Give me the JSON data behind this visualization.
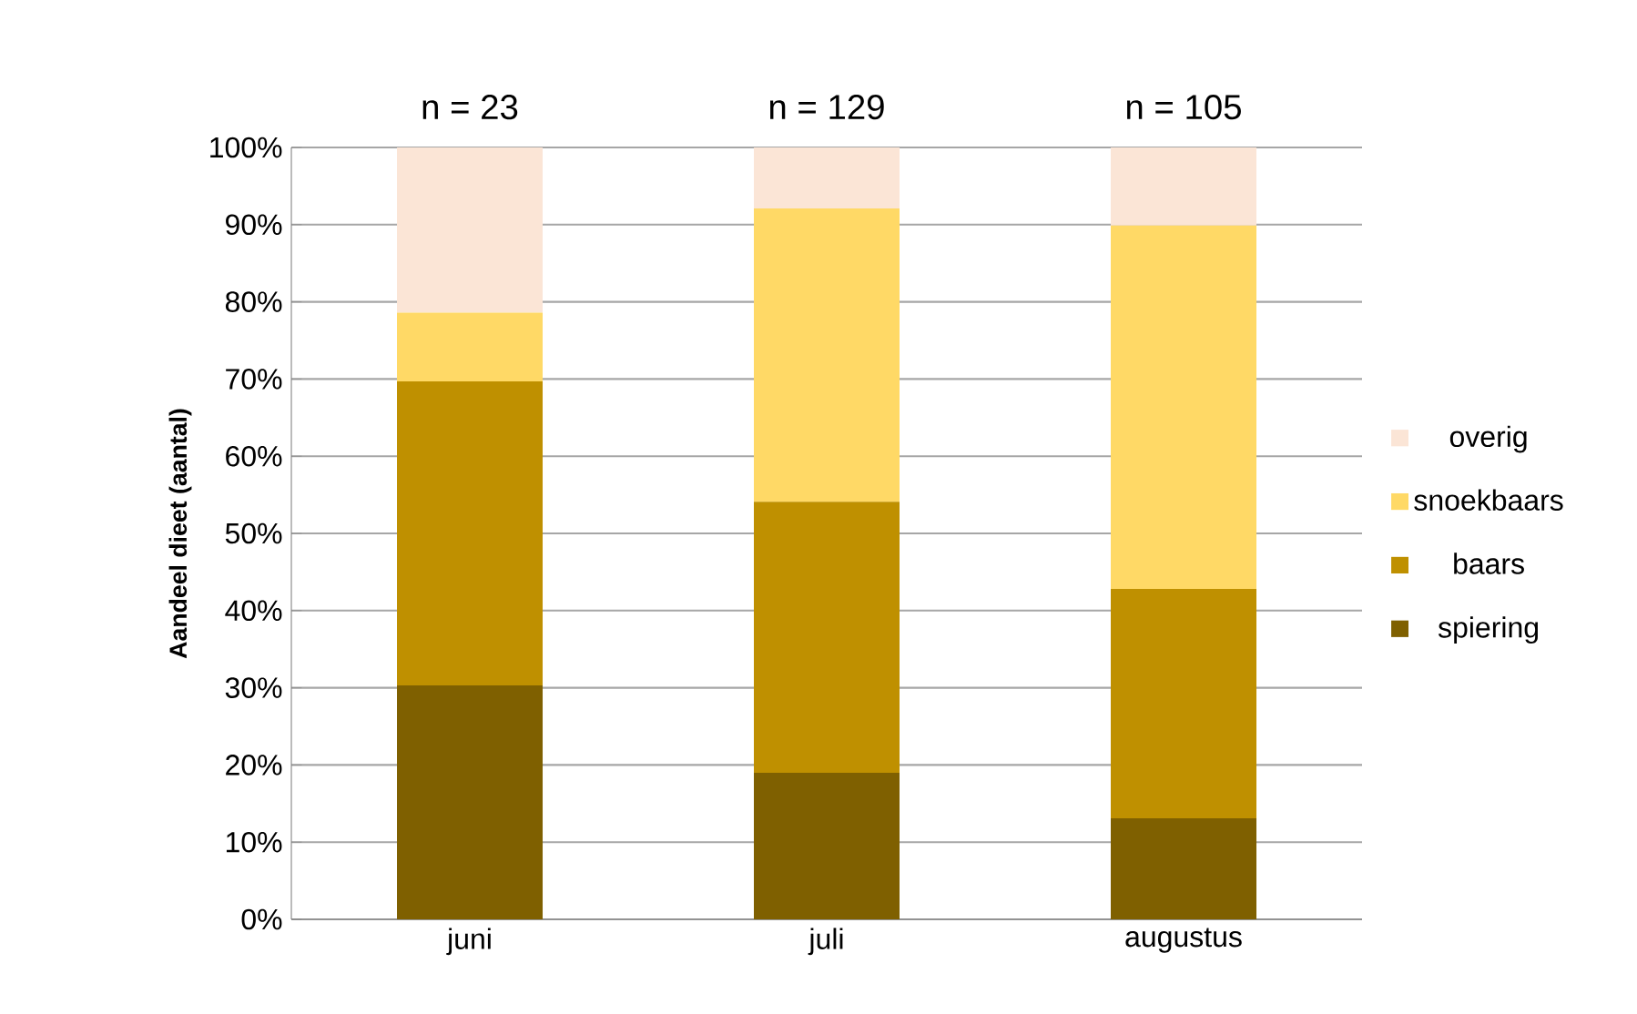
{
  "chart_data": {
    "type": "bar",
    "stacked": true,
    "ylabel": "Aandeel dieet (aantal)",
    "categories": [
      "juni",
      "juli",
      "augustus"
    ],
    "series": [
      {
        "name": "spiering",
        "color": "#7f6000",
        "values": [
          30.3,
          19.0,
          13.1
        ]
      },
      {
        "name": "baars",
        "color": "#bf9000",
        "values": [
          39.4,
          35.1,
          29.7
        ]
      },
      {
        "name": "snoekbaars",
        "color": "#ffd966",
        "values": [
          8.9,
          38.0,
          47.1
        ]
      },
      {
        "name": "overig",
        "color": "#fbe5d6",
        "values": [
          21.4,
          7.9,
          10.1
        ]
      }
    ],
    "ylim": [
      0,
      100
    ],
    "yticks": [
      {
        "value": 0,
        "label": "0%"
      },
      {
        "value": 10,
        "label": "10%"
      },
      {
        "value": 20,
        "label": "20%"
      },
      {
        "value": 30,
        "label": "30%"
      },
      {
        "value": 40,
        "label": "40%"
      },
      {
        "value": 50,
        "label": "50%"
      },
      {
        "value": 60,
        "label": "60%"
      },
      {
        "value": 70,
        "label": "70%"
      },
      {
        "value": 80,
        "label": "80%"
      },
      {
        "value": 90,
        "label": "90%"
      },
      {
        "value": 100,
        "label": "100%"
      }
    ],
    "grid": "y",
    "legend": "right",
    "annotations": [
      "n = 23",
      "n = 129",
      "n = 105"
    ]
  }
}
